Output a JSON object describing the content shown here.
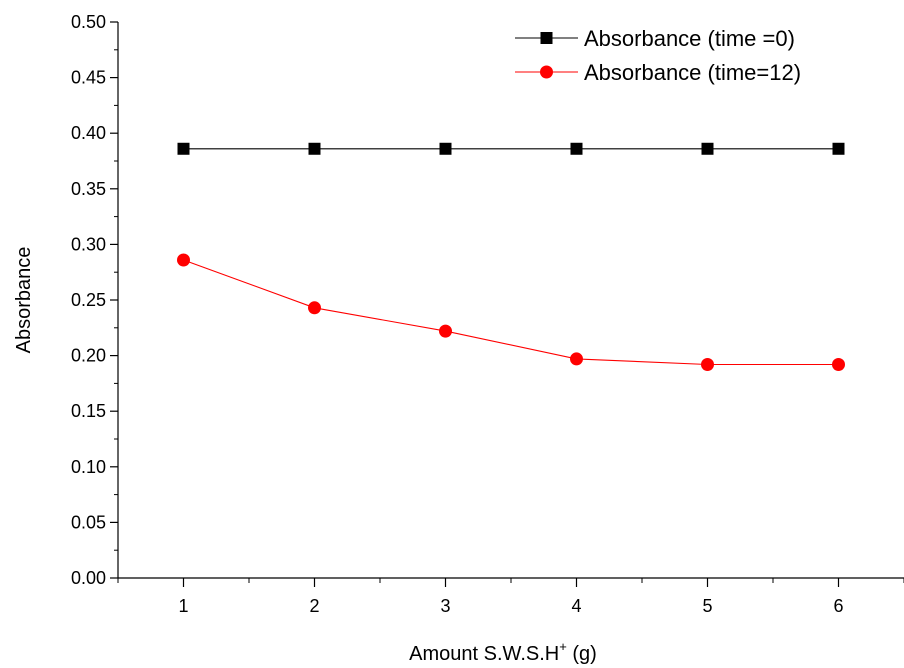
{
  "chart_data": {
    "type": "line",
    "title": "",
    "xlabel": "Amount S.W.S.H",
    "xlabel_superscript": "+",
    "xlabel_suffix": " (g)",
    "ylabel": "Absorbance",
    "x": [
      1,
      2,
      3,
      4,
      5,
      6
    ],
    "x_tick_labels": [
      "1",
      "2",
      "3",
      "4",
      "5",
      "6"
    ],
    "xlim": [
      0.5,
      6.5
    ],
    "ylim": [
      0.0,
      0.5
    ],
    "y_tick_labels": [
      "0.00",
      "0.05",
      "0.10",
      "0.15",
      "0.20",
      "0.25",
      "0.30",
      "0.35",
      "0.40",
      "0.45",
      "0.50"
    ],
    "grid": false,
    "legend_position": "top-right",
    "series": [
      {
        "name": "Absorbance (time =0)",
        "values": [
          0.386,
          0.386,
          0.386,
          0.386,
          0.386,
          0.386
        ],
        "color": "#000000",
        "marker": "square"
      },
      {
        "name": "Absorbance (time=12)",
        "values": [
          0.286,
          0.243,
          0.222,
          0.197,
          0.192,
          0.192
        ],
        "color": "#ff0000",
        "marker": "circle"
      }
    ]
  }
}
